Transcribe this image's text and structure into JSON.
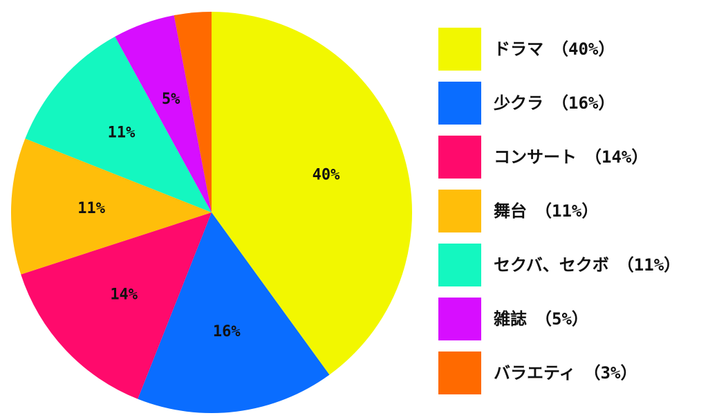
{
  "chart_data": {
    "type": "pie",
    "slices": [
      {
        "label": "ドラマ",
        "value": 40,
        "data_label": "40%",
        "legend_text": "ドラマ　（40%）",
        "color": "#F2F700"
      },
      {
        "label": "少クラ",
        "value": 16,
        "data_label": "16%",
        "legend_text": "少クラ　（16%）",
        "color": "#0A6DFF"
      },
      {
        "label": "コンサート",
        "value": 14,
        "data_label": "14%",
        "legend_text": "コンサート　（14%）",
        "color": "#FF0A6C"
      },
      {
        "label": "舞台",
        "value": 11,
        "data_label": "11%",
        "legend_text": "舞台　（11%）",
        "color": "#FFBE0A"
      },
      {
        "label": "セクバ、セクボ",
        "value": 11,
        "data_label": "11%",
        "legend_text": "セクバ、セクボ　（11%）",
        "color": "#14F7C0"
      },
      {
        "label": "雑誌",
        "value": 5,
        "data_label": "5%",
        "legend_text": "雑誌　（5%）",
        "color": "#D70EFF"
      },
      {
        "label": "バラエティ",
        "value": 3,
        "data_label": "",
        "legend_text": "バラエティ　（3%）",
        "color": "#FF6A00"
      }
    ],
    "start": "12 o'clock",
    "direction": "clockwise",
    "legend_position": "right"
  }
}
